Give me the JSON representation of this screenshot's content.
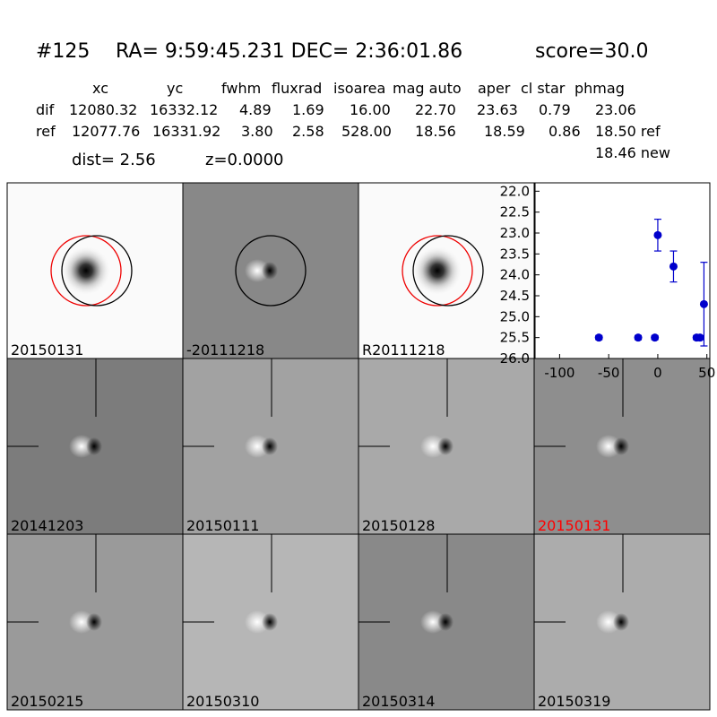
{
  "header": {
    "id": "#125",
    "coords": "RA= 9:59:45.231 DEC= 2:36:01.86",
    "score": "score=30.0"
  },
  "table": {
    "columns": [
      "xc",
      "yc",
      "fwhm",
      "fluxrad",
      "isoarea",
      "mag auto",
      "aper",
      "cl star",
      "phmag"
    ],
    "rows": [
      {
        "label": "dif",
        "cells": [
          "12080.32",
          "16332.12",
          "4.89",
          "1.69",
          "16.00",
          "22.70",
          "23.63",
          "0.79",
          "23.06"
        ]
      },
      {
        "label": "ref",
        "cells": [
          "12077.76",
          "16331.92",
          "3.80",
          "2.58",
          "528.00",
          "18.56",
          "18.59",
          "0.86",
          "18.50 ref"
        ]
      }
    ],
    "extra": "18.46 new"
  },
  "dist": "dist=  2.56",
  "z": "z=0.0000",
  "stamps": [
    {
      "label": "20150131"
    },
    {
      "label": "-20111218"
    },
    {
      "label": "R20111218"
    },
    {
      "label": "20141203"
    },
    {
      "label": "20150111"
    },
    {
      "label": "20150128"
    },
    {
      "label": "20150131",
      "label_color": "#ff0000"
    },
    {
      "label": "20150215"
    },
    {
      "label": "20150310"
    },
    {
      "label": "20150314"
    },
    {
      "label": "20150319"
    }
  ],
  "chart_data": {
    "type": "errorbar",
    "color": "#0000cc",
    "x": [
      -60,
      -20,
      -3,
      0,
      16,
      39.5,
      43,
      47
    ],
    "values": [
      25.5,
      25.5,
      25.5,
      23.05,
      23.8,
      25.5,
      25.5,
      24.7
    ],
    "errors": [
      0.05,
      0.05,
      0.05,
      0.38,
      0.37,
      0.05,
      0.05,
      1.0
    ],
    "xlim": [
      -125,
      53
    ],
    "xticks": [
      -100,
      -50,
      0,
      50
    ],
    "ylim": [
      21.8,
      26
    ],
    "y_inverted": true,
    "yticks": [
      {
        "value": 22,
        "label": "22.0"
      },
      {
        "value": 22.5,
        "label": "22.5"
      },
      {
        "value": 23,
        "label": "23.0"
      },
      {
        "value": 23.5,
        "label": "23.5"
      },
      {
        "value": 24,
        "label": "24.0"
      },
      {
        "value": 24.5,
        "label": "24.5"
      },
      {
        "value": 25,
        "label": "25.0"
      },
      {
        "value": 25.5,
        "label": "25.5"
      },
      {
        "value": 26,
        "label": "26.0"
      }
    ]
  }
}
